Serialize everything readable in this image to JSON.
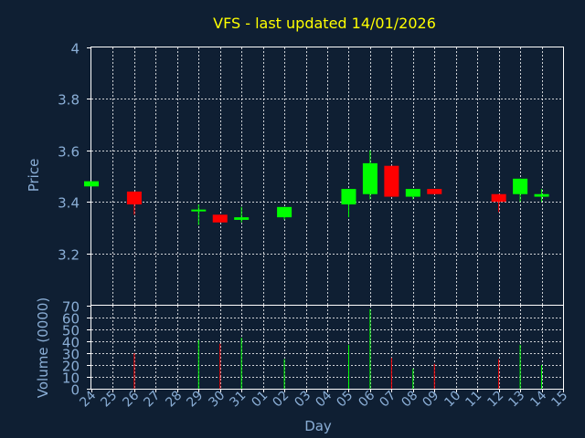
{
  "chart_data": {
    "type": "candlestick",
    "title": "VFS - last updated 14/01/2026",
    "xlabel": "Day",
    "price_panel": {
      "ylabel": "Price",
      "ylim": [
        3.0,
        4.0
      ],
      "yticks": [
        "3.2",
        "3.4",
        "3.6",
        "3.8",
        "4"
      ],
      "ytick_values": [
        3.2,
        3.4,
        3.6,
        3.8,
        4.0
      ],
      "grid": true
    },
    "volume_panel": {
      "ylabel": "Volume (0000)",
      "ylim": [
        0,
        70
      ],
      "yticks": [
        "0",
        "10",
        "20",
        "30",
        "40",
        "50",
        "60",
        "70"
      ],
      "ytick_values": [
        0,
        10,
        20,
        30,
        40,
        50,
        60,
        70
      ],
      "grid": true
    },
    "x_ticks": [
      "24",
      "25",
      "26",
      "27",
      "28",
      "29",
      "30",
      "31",
      "01",
      "02",
      "03",
      "04",
      "05",
      "06",
      "07",
      "08",
      "09",
      "10",
      "11",
      "12",
      "13",
      "14",
      "15"
    ],
    "colors": {
      "up": "#00ff00",
      "down": "#ff0000",
      "grid": "#ffffff",
      "axis_text": "#8aaed6",
      "title": "#ffff00",
      "background": "#0f1f33"
    },
    "candles": [
      {
        "x": 0,
        "open": 3.46,
        "close": 3.48,
        "high": 3.48,
        "low": 3.46,
        "volume": 0
      },
      {
        "x": 2,
        "open": 3.44,
        "close": 3.39,
        "high": 3.44,
        "low": 3.35,
        "volume": 30
      },
      {
        "x": 5,
        "open": 3.37,
        "close": 3.37,
        "high": 3.39,
        "low": 3.31,
        "volume": 41
      },
      {
        "x": 6,
        "open": 3.35,
        "close": 3.32,
        "high": 3.35,
        "low": 3.32,
        "volume": 38
      },
      {
        "x": 7,
        "open": 3.33,
        "close": 3.34,
        "high": 3.38,
        "low": 3.32,
        "volume": 43
      },
      {
        "x": 9,
        "open": 3.34,
        "close": 3.38,
        "high": 3.38,
        "low": 3.33,
        "volume": 25
      },
      {
        "x": 12,
        "open": 3.39,
        "close": 3.45,
        "high": 3.45,
        "low": 3.34,
        "volume": 37
      },
      {
        "x": 13,
        "open": 3.43,
        "close": 3.55,
        "high": 3.6,
        "low": 3.41,
        "volume": 67
      },
      {
        "x": 14,
        "open": 3.54,
        "close": 3.42,
        "high": 3.54,
        "low": 3.42,
        "volume": 26
      },
      {
        "x": 15,
        "open": 3.42,
        "close": 3.45,
        "high": 3.45,
        "low": 3.41,
        "volume": 17
      },
      {
        "x": 16,
        "open": 3.45,
        "close": 3.43,
        "high": 3.45,
        "low": 3.43,
        "volume": 21
      },
      {
        "x": 19,
        "open": 3.43,
        "close": 3.4,
        "high": 3.43,
        "low": 3.36,
        "volume": 25
      },
      {
        "x": 20,
        "open": 3.43,
        "close": 3.49,
        "high": 3.49,
        "low": 3.4,
        "volume": 37
      },
      {
        "x": 21,
        "open": 3.42,
        "close": 3.43,
        "high": 3.45,
        "low": 3.4,
        "volume": 20
      }
    ]
  }
}
